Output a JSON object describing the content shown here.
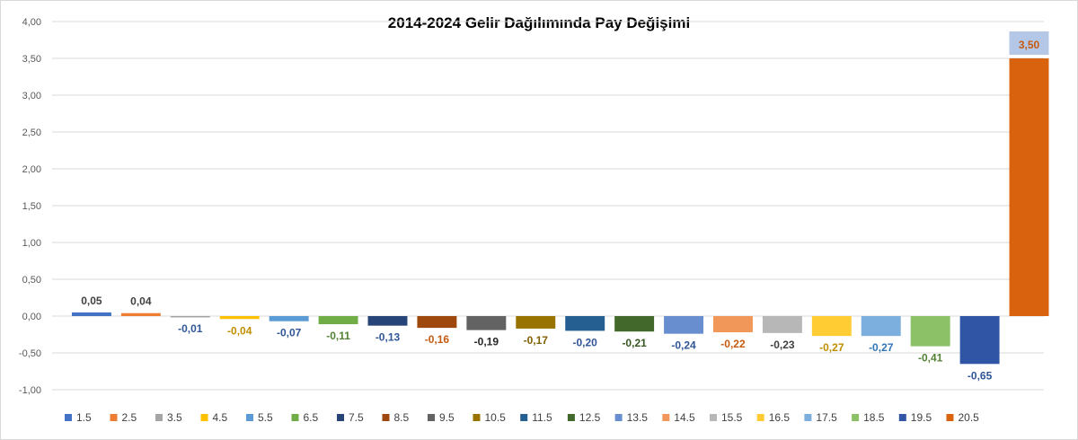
{
  "chart_data": {
    "type": "bar",
    "title": "2014-2024 Gelir Dağılımında Pay Değişimi",
    "xlabel": "",
    "ylabel": "",
    "ylim": [
      -1.0,
      4.0
    ],
    "ytick_step": 0.5,
    "grid": true,
    "legend_placement": "bottom",
    "y_tick_labels": [
      "-1,00",
      "-0,50",
      "0,00",
      "0,50",
      "1,00",
      "1,50",
      "2,00",
      "2,50",
      "3,00",
      "3,50",
      "4,00"
    ],
    "series": [
      {
        "name": "1.5",
        "value": 0.05,
        "label": "0,05",
        "color": "#4472C4",
        "label_color": "#404040"
      },
      {
        "name": "2.5",
        "value": 0.04,
        "label": "0,04",
        "color": "#ED7D31",
        "label_color": "#404040"
      },
      {
        "name": "3.5",
        "value": -0.01,
        "label": "-0,01",
        "color": "#A5A5A5",
        "label_color": "#2F5597"
      },
      {
        "name": "4.5",
        "value": -0.04,
        "label": "-0,04",
        "color": "#FFC000",
        "label_color": "#BF8F00"
      },
      {
        "name": "5.5",
        "value": -0.07,
        "label": "-0,07",
        "color": "#5B9BD5",
        "label_color": "#2F5597"
      },
      {
        "name": "6.5",
        "value": -0.11,
        "label": "-0,11",
        "color": "#70AD47",
        "label_color": "#548235"
      },
      {
        "name": "7.5",
        "value": -0.13,
        "label": "-0,13",
        "color": "#264478",
        "label_color": "#2F5597"
      },
      {
        "name": "8.5",
        "value": -0.16,
        "label": "-0,16",
        "color": "#9E480E",
        "label_color": "#C55A11"
      },
      {
        "name": "9.5",
        "value": -0.19,
        "label": "-0,19",
        "color": "#636363",
        "label_color": "#262626"
      },
      {
        "name": "10.5",
        "value": -0.17,
        "label": "-0,17",
        "color": "#997300",
        "label_color": "#7F6000"
      },
      {
        "name": "11.5",
        "value": -0.2,
        "label": "-0,20",
        "color": "#255E91",
        "label_color": "#2F5597"
      },
      {
        "name": "12.5",
        "value": -0.21,
        "label": "-0,21",
        "color": "#43682B",
        "label_color": "#375623"
      },
      {
        "name": "13.5",
        "value": -0.24,
        "label": "-0,24",
        "color": "#698ED0",
        "label_color": "#2F5597"
      },
      {
        "name": "14.5",
        "value": -0.22,
        "label": "-0,22",
        "color": "#F1975A",
        "label_color": "#C55A11"
      },
      {
        "name": "15.5",
        "value": -0.23,
        "label": "-0,23",
        "color": "#B7B7B7",
        "label_color": "#404040"
      },
      {
        "name": "16.5",
        "value": -0.27,
        "label": "-0,27",
        "color": "#FFCD33",
        "label_color": "#BF8F00"
      },
      {
        "name": "17.5",
        "value": -0.27,
        "label": "-0,27",
        "color": "#7CAFDD",
        "label_color": "#2F75B5"
      },
      {
        "name": "18.5",
        "value": -0.41,
        "label": "-0,41",
        "color": "#8CC168",
        "label_color": "#548235"
      },
      {
        "name": "19.5",
        "value": -0.65,
        "label": "-0,65",
        "color": "#2F55A4",
        "label_color": "#2F5597"
      },
      {
        "name": "20.5",
        "value": 3.5,
        "label": "3,50",
        "color": "#D9620F",
        "label_color": "#C55A11",
        "label_bg": "#B4C7E7"
      }
    ]
  }
}
